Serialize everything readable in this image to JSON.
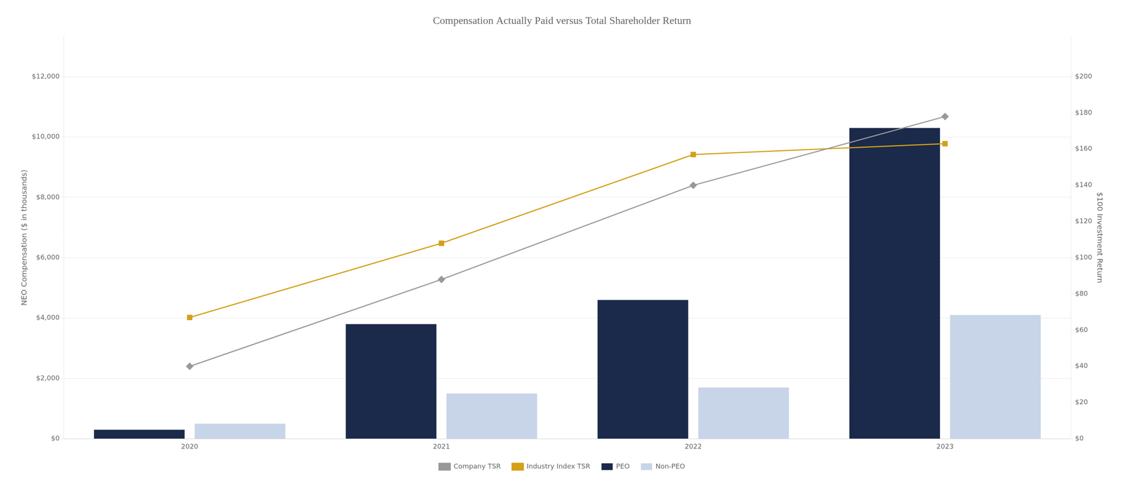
{
  "chart_data": {
    "type": "bar",
    "title": "Compensation Actually Paid versus Total Shareholder Return",
    "categories": [
      "2020",
      "2021",
      "2022",
      "2023"
    ],
    "ylabel": "NEO Compensation ($ in thousands)",
    "y2label": "$100 Investment Return",
    "ylim": [
      0,
      13333
    ],
    "yticks": [
      {
        "value": 0,
        "label": "$0"
      },
      {
        "value": 2000,
        "label": "$2,000"
      },
      {
        "value": 4000,
        "label": "$4,000"
      },
      {
        "value": 6000,
        "label": "$6,000"
      },
      {
        "value": 8000,
        "label": "$8,000"
      },
      {
        "value": 10000,
        "label": "$10,000"
      },
      {
        "value": 12000,
        "label": "$12,000"
      }
    ],
    "y2lim": [
      0,
      222.2
    ],
    "y2ticks": [
      {
        "value": 0,
        "label": "$0"
      },
      {
        "value": 20,
        "label": "$20"
      },
      {
        "value": 40,
        "label": "$40"
      },
      {
        "value": 60,
        "label": "$60"
      },
      {
        "value": 80,
        "label": "$80"
      },
      {
        "value": 100,
        "label": "$100"
      },
      {
        "value": 120,
        "label": "$120"
      },
      {
        "value": 140,
        "label": "$140"
      },
      {
        "value": 160,
        "label": "$160"
      },
      {
        "value": 180,
        "label": "$180"
      },
      {
        "value": 200,
        "label": "$200"
      }
    ],
    "grid": true,
    "legend": "bottom",
    "series": [
      {
        "name": "PEO",
        "type": "bar",
        "color": "#1B2A4A",
        "values": [
          300,
          3800,
          4600,
          10300
        ]
      },
      {
        "name": "Non-PEO",
        "type": "bar",
        "color": "#C8D5E8",
        "values": [
          500,
          1500,
          1700,
          4100
        ]
      },
      {
        "name": "Company TSR",
        "type": "line",
        "axis": "y2",
        "marker": "diamond",
        "color": "#999999",
        "values": [
          40,
          88,
          140,
          178
        ]
      },
      {
        "name": "Industry Index TSR",
        "type": "line",
        "axis": "y2",
        "marker": "square",
        "color": "#D4A017",
        "values": [
          67,
          108,
          157,
          163
        ]
      }
    ]
  }
}
